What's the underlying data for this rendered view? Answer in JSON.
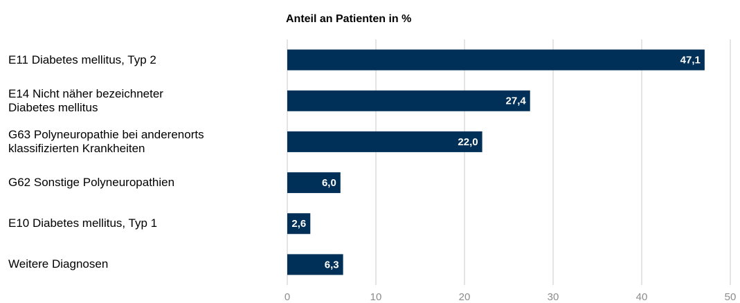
{
  "chart_data": {
    "type": "bar",
    "orientation": "horizontal",
    "x_axis_label": "Anteil an Patienten in %",
    "categories": [
      "E11 Diabetes mellitus, Typ 2",
      "E14  Nicht näher bezeichneter\nDiabetes mellitus",
      "G63 Polyneuropathie bei anderenorts\nklassifizierten Krankheiten",
      "G62 Sonstige Polyneuropathien",
      "E10 Diabetes mellitus, Typ 1",
      "Weitere Diagnosen"
    ],
    "values": [
      47.1,
      27.4,
      22.0,
      6.0,
      2.6,
      6.3
    ],
    "value_labels": [
      "47,1",
      "27,4",
      "22,0",
      "6,0",
      "2,6",
      "6,3"
    ],
    "color": "#003057",
    "xlim": [
      0,
      50
    ],
    "xticks": [
      0,
      10,
      20,
      30,
      40,
      50
    ],
    "grid": true
  }
}
